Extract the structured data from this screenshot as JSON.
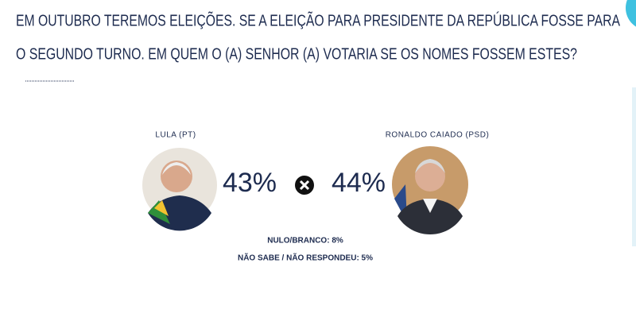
{
  "question": {
    "lines": [
      "EM OUTUBRO TEREMOS ELEIÇÕES. SE A ELEIÇÃO PARA PRESIDENTE DA REPÚBLICA FOSSE PARA",
      "O SEGUNDO TURNO. EM QUEM O (A) SENHOR (A) VOTARIA SE OS NOMES FOSSEM ESTES?"
    ]
  },
  "candidates": [
    {
      "name": "LULA (PT)",
      "percent": "43%"
    },
    {
      "name": "RONALDO CAIADO (PSD)",
      "percent": "44%"
    }
  ],
  "others": [
    "NULO/BRANCO: 8%",
    "NÃO SABE / NÃO RESPONDEU: 5%"
  ]
}
